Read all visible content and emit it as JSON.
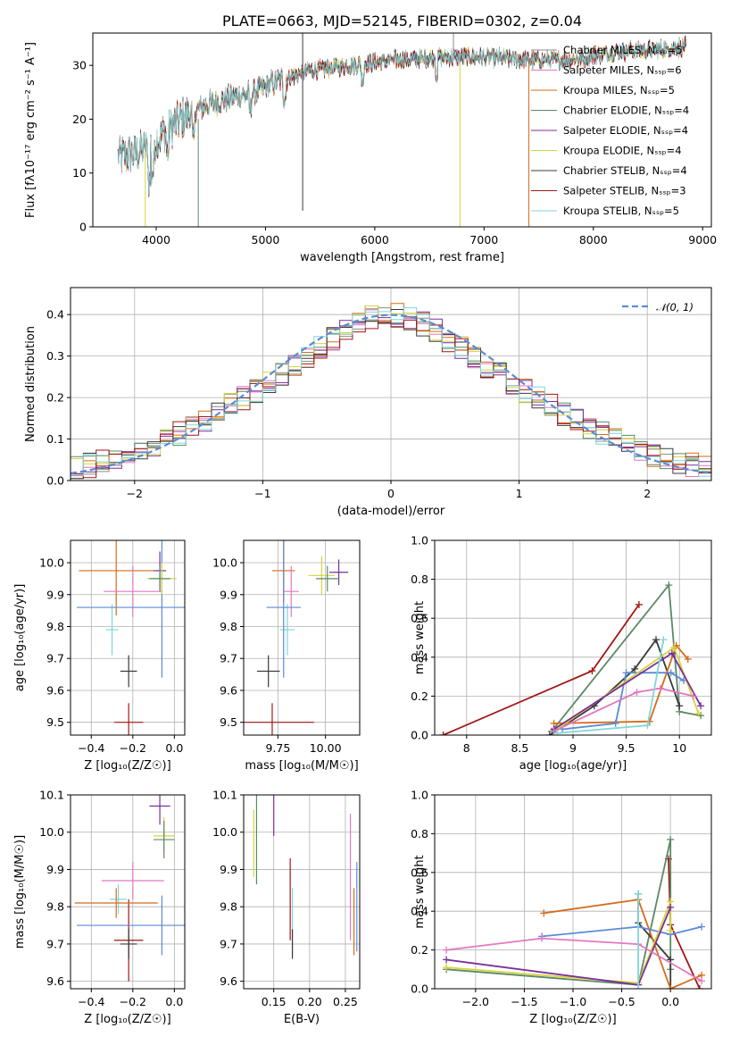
{
  "chart_data": [
    {
      "id": "spectrum",
      "type": "line",
      "title": "PLATE=0663, MJD=52145, FIBERID=0302, z=0.04",
      "xlabel": "wavelength [Angstrom, rest frame]",
      "ylabel": "Flux [fλ10⁻¹⁷ erg cm⁻² s⁻¹ A⁻¹]",
      "xlim": [
        3420,
        9080
      ],
      "ylim": [
        0,
        36
      ],
      "xticks": [
        4000,
        5000,
        6000,
        7000,
        8000,
        9000
      ],
      "yticks": [
        0,
        10,
        20,
        30
      ],
      "legend_position": "upper-right",
      "continuum": {
        "x": [
          3650,
          3800,
          3950,
          4100,
          4300,
          4500,
          4700,
          4900,
          5100,
          5400,
          5800,
          6200,
          6600,
          7000,
          7400,
          7800,
          8200,
          8600,
          8850
        ],
        "y": [
          13,
          13.5,
          15,
          18,
          21,
          23,
          24,
          25,
          27,
          29,
          30,
          31,
          31.5,
          31.5,
          31,
          31,
          32.5,
          33,
          33.5
        ]
      },
      "series": [
        {
          "name": "Chabrier MILES, Nₛₛₚ=5",
          "color": "#8c8c8c"
        },
        {
          "name": "Salpeter MILES, Nₛₛₚ=6",
          "color": "#e377c2"
        },
        {
          "name": "Kroupa MILES, Nₛₛₚ=5",
          "color": "#d66b17"
        },
        {
          "name": "Chabrier ELODIE, Nₛₛₚ=4",
          "color": "#5a8a64"
        },
        {
          "name": "Salpeter ELODIE, Nₛₛₚ=4",
          "color": "#7b2f9b"
        },
        {
          "name": "Kroupa ELODIE, Nₛₛₚ=4",
          "color": "#d6d43c"
        },
        {
          "name": "Chabrier STELIB, Nₛₛₚ=4",
          "color": "#3a3a3a"
        },
        {
          "name": "Salpeter STELIB, Nₛₛₚ=3",
          "color": "#a31616"
        },
        {
          "name": "Kroupa STELIB, Nₛₛₚ=5",
          "color": "#7fd6d9"
        }
      ]
    },
    {
      "id": "residuals",
      "type": "histogram",
      "xlabel": "(data-model)/error",
      "ylabel": "Normed distribution",
      "xlim": [
        -2.5,
        2.5
      ],
      "ylim": [
        0,
        0.465
      ],
      "xticks": [
        -2,
        -1,
        0,
        1,
        2
      ],
      "yticks": [
        0.0,
        0.1,
        0.2,
        0.3,
        0.4
      ],
      "grid": true,
      "bin_width": 0.1,
      "reference_curve": {
        "name": "𝒩(0, 1)",
        "color": "#5b8bd6",
        "style": "dashed"
      },
      "legend_position": "upper-right",
      "series_colors": [
        "#8c8c8c",
        "#e377c2",
        "#d66b17",
        "#5a8a64",
        "#7b2f9b",
        "#d6d43c",
        "#3a3a3a",
        "#a31616",
        "#7fd6d9"
      ]
    },
    {
      "id": "age-vs-Z",
      "type": "errorbar",
      "xlabel": "Z [log₁₀(Z/Z☉)]",
      "ylabel": "age  [log₁₀(age/yr)]",
      "xlim": [
        -0.5,
        0.05
      ],
      "ylim": [
        9.46,
        10.07
      ],
      "xticks": [
        -0.4,
        -0.2,
        0.0
      ],
      "xtick_labels": [
        "−0.4",
        "−0.2",
        "0.0"
      ],
      "yticks": [
        9.5,
        9.6,
        9.7,
        9.8,
        9.9,
        10.0
      ],
      "grid": true,
      "points": [
        {
          "x": -0.22,
          "y": 9.5,
          "xerr": 0.07,
          "yerr": 0.06,
          "color": "#a31616"
        },
        {
          "x": -0.22,
          "y": 9.66,
          "xerr": 0.04,
          "yerr": 0.05,
          "color": "#3a3a3a"
        },
        {
          "x": -0.3,
          "y": 9.79,
          "xerr": 0.03,
          "yerr": 0.08,
          "color": "#7fd6d9"
        },
        {
          "x": -0.28,
          "y": 9.975,
          "xerr": 0.18,
          "yerr": 0.14,
          "color": "#d66b17"
        },
        {
          "x": -0.2,
          "y": 9.91,
          "xerr": 0.14,
          "yerr": 0.08,
          "color": "#e377c2"
        },
        {
          "x": -0.06,
          "y": 9.86,
          "xerr": 0.41,
          "yerr": 0.22,
          "color": "#5b8bd6"
        },
        {
          "x": -0.07,
          "y": 9.975,
          "xerr": 0.03,
          "yerr": 0.06,
          "color": "#7b2f9b"
        },
        {
          "x": -0.06,
          "y": 9.95,
          "xerr": 0.07,
          "yerr": 0.05,
          "color": "#d6d43c"
        },
        {
          "x": -0.07,
          "y": 9.95,
          "xerr": 0.05,
          "yerr": 0.04,
          "color": "#5a8a64"
        }
      ]
    },
    {
      "id": "age-vs-mass",
      "type": "errorbar",
      "xlabel": "mass [log₁₀(M/M☉)]",
      "ylabel": "",
      "xlim": [
        9.57,
        10.18
      ],
      "ylim": [
        9.46,
        10.07
      ],
      "xticks": [
        9.75,
        10.0
      ],
      "xtick_labels": [
        "9.75",
        "10.00"
      ],
      "yticks": [
        9.5,
        9.6,
        9.7,
        9.8,
        9.9,
        10.0
      ],
      "grid": true,
      "points": [
        {
          "x": 9.72,
          "y": 9.5,
          "xerr": 0.22,
          "yerr": 0.06,
          "color": "#a31616"
        },
        {
          "x": 9.7,
          "y": 9.66,
          "xerr": 0.06,
          "yerr": 0.05,
          "color": "#3a3a3a"
        },
        {
          "x": 9.8,
          "y": 9.79,
          "xerr": 0.04,
          "yerr": 0.08,
          "color": "#7fd6d9"
        },
        {
          "x": 9.78,
          "y": 9.975,
          "xerr": 0.06,
          "yerr": 0.1,
          "color": "#d66b17"
        },
        {
          "x": 9.82,
          "y": 9.91,
          "xerr": 0.04,
          "yerr": 0.08,
          "color": "#e377c2"
        },
        {
          "x": 9.78,
          "y": 9.86,
          "xerr": 0.09,
          "yerr": 0.22,
          "color": "#5b8bd6"
        },
        {
          "x": 10.07,
          "y": 9.97,
          "xerr": 0.05,
          "yerr": 0.04,
          "color": "#7b2f9b"
        },
        {
          "x": 9.98,
          "y": 9.96,
          "xerr": 0.07,
          "yerr": 0.06,
          "color": "#d6d43c"
        },
        {
          "x": 10.01,
          "y": 9.95,
          "xerr": 0.06,
          "yerr": 0.04,
          "color": "#5a8a64"
        }
      ]
    },
    {
      "id": "mass-weight-vs-age",
      "type": "line",
      "xlabel": "age  [log₁₀(age/yr)]",
      "ylabel": "mass weight",
      "xlim": [
        7.7,
        10.3
      ],
      "ylim": [
        0.0,
        1.0
      ],
      "xticks": [
        8.0,
        8.5,
        9.0,
        9.5,
        10.0
      ],
      "yticks": [
        0.0,
        0.2,
        0.4,
        0.6,
        0.8,
        1.0
      ],
      "grid": true,
      "series": [
        {
          "color": "#a31616",
          "x": [
            7.78,
            9.18,
            9.62
          ],
          "y": [
            0.0,
            0.33,
            0.67
          ]
        },
        {
          "color": "#5a8a64",
          "x": [
            8.8,
            9.9,
            10.0,
            10.2
          ],
          "y": [
            0.02,
            0.77,
            0.12,
            0.1
          ]
        },
        {
          "color": "#3a3a3a",
          "x": [
            8.78,
            9.2,
            9.58,
            9.78,
            10.0
          ],
          "y": [
            0.0,
            0.15,
            0.34,
            0.49,
            0.15
          ]
        },
        {
          "color": "#d66b17",
          "x": [
            8.82,
            9.72,
            9.97,
            10.08
          ],
          "y": [
            0.06,
            0.07,
            0.46,
            0.39
          ]
        },
        {
          "color": "#5b8bd6",
          "x": [
            8.9,
            9.4,
            9.5,
            9.92,
            10.04
          ],
          "y": [
            0.03,
            0.06,
            0.32,
            0.32,
            0.28
          ]
        },
        {
          "color": "#d6d43c",
          "x": [
            8.85,
            9.95,
            10.18
          ],
          "y": [
            0.03,
            0.45,
            0.11
          ]
        },
        {
          "color": "#7b2f9b",
          "x": [
            8.82,
            9.93,
            10.2
          ],
          "y": [
            0.03,
            0.42,
            0.15
          ]
        },
        {
          "color": "#e377c2",
          "x": [
            8.82,
            9.6,
            9.82,
            10.13
          ],
          "y": [
            0.02,
            0.22,
            0.24,
            0.2
          ]
        },
        {
          "color": "#7fd6d9",
          "x": [
            8.85,
            9.7,
            9.85
          ],
          "y": [
            0.01,
            0.05,
            0.49
          ]
        }
      ]
    },
    {
      "id": "mass-vs-Z",
      "type": "errorbar",
      "xlabel": "Z [log₁₀(Z/Z☉)]",
      "ylabel": "mass [log₁₀(M/M☉)]",
      "xlim": [
        -0.5,
        0.05
      ],
      "ylim": [
        9.58,
        10.1
      ],
      "xticks": [
        -0.4,
        -0.2,
        0.0
      ],
      "xtick_labels": [
        "−0.4",
        "−0.2",
        "0.0"
      ],
      "yticks": [
        9.6,
        9.7,
        9.8,
        9.9,
        10.0,
        10.1
      ],
      "grid": true,
      "points": [
        {
          "x": -0.22,
          "y": 9.71,
          "xerr": 0.07,
          "yerr": 0.11,
          "color": "#a31616"
        },
        {
          "x": -0.22,
          "y": 9.7,
          "xerr": 0.04,
          "yerr": 0.04,
          "color": "#3a3a3a"
        },
        {
          "x": -0.27,
          "y": 9.82,
          "xerr": 0.04,
          "yerr": 0.04,
          "color": "#7fd6d9"
        },
        {
          "x": -0.28,
          "y": 9.81,
          "xerr": 0.2,
          "yerr": 0.04,
          "color": "#d66b17"
        },
        {
          "x": -0.2,
          "y": 9.87,
          "xerr": 0.15,
          "yerr": 0.05,
          "color": "#e377c2"
        },
        {
          "x": -0.06,
          "y": 9.75,
          "xerr": 0.41,
          "yerr": 0.08,
          "color": "#5b8bd6"
        },
        {
          "x": -0.07,
          "y": 10.07,
          "xerr": 0.05,
          "yerr": 0.05,
          "color": "#7b2f9b"
        },
        {
          "x": -0.05,
          "y": 9.99,
          "xerr": 0.05,
          "yerr": 0.05,
          "color": "#d6d43c"
        },
        {
          "x": -0.05,
          "y": 9.98,
          "xerr": 0.05,
          "yerr": 0.05,
          "color": "#5a8a64"
        }
      ]
    },
    {
      "id": "mass-vs-ebv",
      "type": "errorbar",
      "xlabel": "E(B-V)",
      "ylabel": "",
      "xlim": [
        0.108,
        0.27
      ],
      "ylim": [
        9.58,
        10.1
      ],
      "xticks": [
        0.15,
        0.2,
        0.25
      ],
      "xtick_labels": [
        "0.15",
        "0.20",
        "0.25"
      ],
      "yticks": [
        9.6,
        9.7,
        9.8,
        9.9,
        10.0,
        10.1
      ],
      "grid": true,
      "points": [
        {
          "x": 0.122,
          "y": 9.97,
          "xerr": 0,
          "yerr": 0.09,
          "color": "#d6d43c"
        },
        {
          "x": 0.126,
          "y": 9.99,
          "xerr": 0,
          "yerr": 0.13,
          "color": "#5a8a64"
        },
        {
          "x": 0.15,
          "y": 10.07,
          "xerr": 0,
          "yerr": 0.08,
          "color": "#7b2f9b"
        },
        {
          "x": 0.173,
          "y": 9.82,
          "xerr": 0,
          "yerr": 0.11,
          "color": "#a31616"
        },
        {
          "x": 0.176,
          "y": 9.76,
          "xerr": 0,
          "yerr": 0.09,
          "color": "#7fd6d9"
        },
        {
          "x": 0.176,
          "y": 9.7,
          "xerr": 0,
          "yerr": 0.04,
          "color": "#3a3a3a"
        },
        {
          "x": 0.257,
          "y": 9.88,
          "xerr": 0,
          "yerr": 0.17,
          "color": "#e377c2"
        },
        {
          "x": 0.262,
          "y": 9.76,
          "xerr": 0,
          "yerr": 0.09,
          "color": "#d66b17"
        },
        {
          "x": 0.266,
          "y": 9.8,
          "xerr": 0,
          "yerr": 0.12,
          "color": "#5b8bd6"
        }
      ]
    },
    {
      "id": "mass-weight-vs-Z",
      "type": "line",
      "xlabel": "Z [log₁₀(Z/Z☉)]",
      "ylabel": "mass weight",
      "xlim": [
        -2.42,
        0.42
      ],
      "ylim": [
        0.0,
        1.0
      ],
      "xticks": [
        -2.0,
        -1.5,
        -1.0,
        -0.5,
        0.0
      ],
      "xtick_labels": [
        "−2.0",
        "−1.5",
        "−1.0",
        "−0.5",
        "0.0"
      ],
      "yticks": [
        0.0,
        0.2,
        0.4,
        0.6,
        0.8,
        1.0
      ],
      "grid": true,
      "series": [
        {
          "color": "#a31616",
          "x": [
            -0.02,
            0.0,
            0.3
          ],
          "y": [
            0.67,
            0.33,
            0.0
          ]
        },
        {
          "color": "#5a8a64",
          "x": [
            -2.3,
            -0.33,
            0.0,
            0.0
          ],
          "y": [
            0.1,
            0.02,
            0.77,
            0.1
          ]
        },
        {
          "color": "#3a3a3a",
          "x": [
            -0.33,
            -0.33,
            0.0,
            0.0
          ],
          "y": [
            0.49,
            0.34,
            0.15,
            0.0
          ]
        },
        {
          "color": "#d66b17",
          "x": [
            -1.3,
            -0.33,
            0.0,
            0.32
          ],
          "y": [
            0.39,
            0.46,
            0.0,
            0.07
          ]
        },
        {
          "color": "#5b8bd6",
          "x": [
            -1.32,
            -0.33,
            0.0,
            0.32
          ],
          "y": [
            0.27,
            0.32,
            0.28,
            0.32
          ]
        },
        {
          "color": "#d6d43c",
          "x": [
            -2.3,
            -0.33,
            0.0,
            0.0
          ],
          "y": [
            0.11,
            0.03,
            0.45,
            0.3
          ]
        },
        {
          "color": "#7b2f9b",
          "x": [
            -2.3,
            -0.33,
            0.0
          ],
          "y": [
            0.15,
            0.02,
            0.42
          ]
        },
        {
          "color": "#e377c2",
          "x": [
            -2.3,
            -1.32,
            -0.33,
            0.32
          ],
          "y": [
            0.2,
            0.26,
            0.23,
            0.04
          ]
        },
        {
          "color": "#7fd6d9",
          "x": [
            -0.33,
            -0.33
          ],
          "y": [
            0.49,
            0.0
          ]
        }
      ]
    }
  ]
}
